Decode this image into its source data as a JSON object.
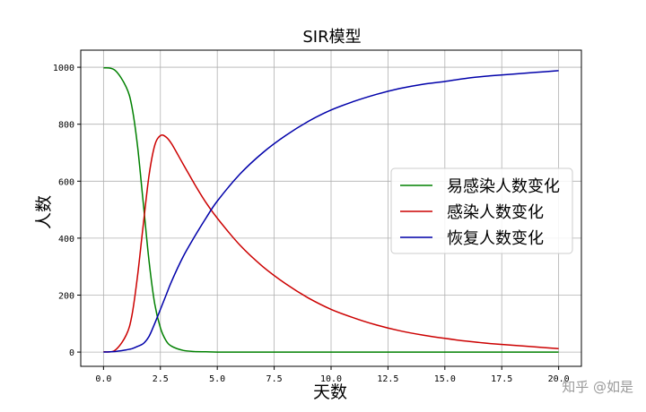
{
  "watermark": "知乎 @如是",
  "chart_data": {
    "type": "line",
    "title": "SIR模型",
    "xlabel": "天数",
    "ylabel": "人数",
    "xlim": [
      -1,
      21
    ],
    "ylim": [
      -50,
      1060
    ],
    "xticks": [
      0.0,
      2.5,
      5.0,
      7.5,
      10.0,
      12.5,
      15.0,
      17.5,
      20.0
    ],
    "xtick_labels": [
      "0.0",
      "2.5",
      "5.0",
      "7.5",
      "10.0",
      "12.5",
      "15.0",
      "17.5",
      "20.0"
    ],
    "yticks": [
      0,
      200,
      400,
      600,
      800,
      1000
    ],
    "ytick_labels": [
      "0",
      "200",
      "400",
      "600",
      "800",
      "1000"
    ],
    "grid": true,
    "legend_position": "center-right",
    "x": [
      0,
      0.5,
      1.0,
      1.25,
      1.5,
      1.75,
      2.0,
      2.25,
      2.5,
      2.75,
      3.0,
      3.5,
      4.0,
      4.5,
      5.0,
      6.0,
      7.0,
      8.0,
      9.0,
      10.0,
      11.0,
      12.0,
      13.0,
      14.0,
      15.0,
      16.0,
      17.0,
      18.0,
      19.0,
      20.0
    ],
    "series": [
      {
        "name": "易感染人数变化",
        "color": "#008000",
        "values": [
          998,
          990,
          930,
          860,
          720,
          520,
          320,
          170,
          85,
          40,
          20,
          6,
          2,
          1,
          0,
          0,
          0,
          0,
          0,
          0,
          0,
          0,
          0,
          0,
          0,
          0,
          0,
          0,
          0,
          0
        ]
      },
      {
        "name": "感染人数变化",
        "color": "#cc0000",
        "values": [
          1,
          6,
          60,
          130,
          270,
          450,
          620,
          725,
          760,
          755,
          730,
          660,
          590,
          525,
          470,
          375,
          300,
          240,
          190,
          150,
          120,
          95,
          75,
          60,
          48,
          38,
          30,
          24,
          18,
          12
        ]
      },
      {
        "name": "恢复人数变化",
        "color": "#0000aa",
        "values": [
          0,
          2,
          8,
          12,
          20,
          30,
          55,
          100,
          150,
          200,
          250,
          335,
          405,
          470,
          530,
          625,
          700,
          760,
          810,
          850,
          880,
          905,
          925,
          940,
          950,
          962,
          970,
          976,
          982,
          988
        ]
      }
    ]
  }
}
